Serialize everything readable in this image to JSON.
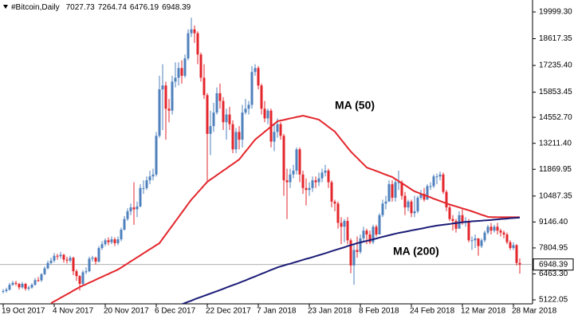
{
  "chart_data": {
    "type": "candlestick",
    "title": "#Bitcoin,Daily",
    "up_color": "#4f81bd",
    "down_color": "#e3262c",
    "price_line_color": "#b0b0b0",
    "categories": [
      "19 Oct 2017",
      null,
      null,
      null,
      null,
      null,
      null,
      null,
      null,
      null,
      null,
      null,
      null,
      null,
      null,
      null,
      "4 Nov 2017",
      null,
      null,
      null,
      null,
      null,
      null,
      null,
      null,
      null,
      null,
      null,
      null,
      null,
      null,
      null,
      "20 Nov 2017",
      null,
      null,
      null,
      null,
      null,
      null,
      null,
      null,
      null,
      null,
      null,
      null,
      null,
      null,
      null,
      "6 Dec 2017",
      null,
      null,
      null,
      null,
      null,
      null,
      null,
      null,
      null,
      null,
      null,
      null,
      null,
      null,
      null,
      "22 Dec 2017",
      null,
      null,
      null,
      null,
      null,
      null,
      null,
      null,
      null,
      null,
      null,
      null,
      null,
      null,
      null,
      "7 Jan 2018",
      null,
      null,
      null,
      null,
      null,
      null,
      null,
      null,
      null,
      null,
      null,
      null,
      null,
      null,
      null,
      "23 Jan 2018",
      null,
      null,
      null,
      null,
      null,
      null,
      null,
      null,
      null,
      null,
      null,
      null,
      null,
      null,
      null,
      "8 Feb 2018",
      null,
      null,
      null,
      null,
      null,
      null,
      null,
      null,
      null,
      null,
      null,
      null,
      null,
      null,
      null,
      "24 Feb 2018",
      null,
      null,
      null,
      null,
      null,
      null,
      null,
      null,
      null,
      null,
      null,
      null,
      null,
      null,
      null,
      "12 Mar 2018",
      null,
      null,
      null,
      null,
      null,
      null,
      null,
      null,
      null,
      null,
      null,
      null,
      null,
      null,
      null,
      "28 Mar 2018",
      null,
      null
    ],
    "open": [
      5550,
      5580,
      5650,
      5900,
      6000,
      5950,
      5770,
      5950,
      5700,
      5760,
      5900,
      6140,
      6130,
      6450,
      6750,
      7030,
      7150,
      7400,
      7380,
      7450,
      7200,
      7150,
      7300,
      6600,
      6350,
      5950,
      6550,
      6600,
      7250,
      7300,
      7100,
      7800,
      8000,
      8200,
      8100,
      8250,
      8050,
      8250,
      8750,
      9300,
      9700,
      9900,
      9800,
      9950,
      10900,
      10900,
      11300,
      11500,
      11600,
      13600,
      16000,
      16200,
      15000,
      14900,
      16400,
      16600,
      17100,
      16700,
      17600,
      18900,
      19100,
      18900,
      17800,
      16600,
      15700,
      13700,
      14100,
      14800,
      15800,
      15400,
      14300,
      14700,
      14200,
      12900,
      13800,
      13400,
      14800,
      15000,
      15200,
      16900,
      17100,
      16200,
      15000,
      14500,
      14900,
      13300,
      13800,
      14200,
      13600,
      11300,
      11200,
      11600,
      11800,
      12900,
      11600,
      10900,
      10800,
      10900,
      11300,
      11200,
      11400,
      11700,
      11800,
      11200,
      10200,
      10100,
      9100,
      8900,
      9200,
      8200,
      6900,
      7700,
      7600,
      8300,
      8700,
      8500,
      8100,
      8900,
      8500,
      9500,
      10100,
      10200,
      11100,
      10400,
      11200,
      11200,
      10500,
      9900,
      10200,
      9600,
      9700,
      10400,
      10600,
      10300,
      11000,
      11000,
      11500,
      11500,
      11600,
      10700,
      9900,
      9300,
      9200,
      8800,
      9500,
      9100,
      9200,
      8200,
      8200,
      8300,
      7900,
      8200,
      8600,
      8900,
      8700,
      8900,
      8700,
      8600,
      8500,
      8100,
      7800,
      7950,
      7027.73
    ],
    "high": [
      5680,
      5750,
      6000,
      6100,
      6100,
      6000,
      6050,
      6000,
      5850,
      5980,
      6250,
      6300,
      6500,
      6850,
      7150,
      7300,
      7550,
      7500,
      7600,
      7500,
      7350,
      7400,
      7350,
      6700,
      6400,
      6650,
      6800,
      7350,
      7400,
      7350,
      7900,
      8150,
      8300,
      8350,
      8400,
      8350,
      8400,
      8850,
      9450,
      9850,
      10100,
      11200,
      10200,
      11100,
      11300,
      11500,
      11800,
      11900,
      13800,
      16700,
      17300,
      16400,
      15500,
      16700,
      17400,
      17400,
      17500,
      17800,
      19100,
      19700,
      19300,
      19000,
      17900,
      17300,
      15800,
      14900,
      15300,
      16100,
      16300,
      15600,
      15000,
      15100,
      14400,
      14000,
      14100,
      15200,
      15500,
      15400,
      17200,
      17300,
      17200,
      16300,
      15400,
      15000,
      15000,
      14200,
      14500,
      14300,
      13700,
      11900,
      11900,
      12100,
      13000,
      13000,
      11800,
      11400,
      11200,
      11500,
      11500,
      11700,
      11900,
      12100,
      11900,
      11300,
      10300,
      10200,
      9400,
      9300,
      9400,
      8300,
      8000,
      8400,
      8500,
      8900,
      8800,
      8700,
      9000,
      9000,
      9600,
      10300,
      10500,
      11300,
      11300,
      11300,
      11800,
      11300,
      10700,
      10300,
      10300,
      10500,
      10500,
      10800,
      10900,
      11100,
      11200,
      11600,
      11650,
      11750,
      11700,
      10800,
      10000,
      9500,
      9300,
      9700,
      9800,
      9400,
      9300,
      8400,
      8500,
      8300,
      8300,
      8700,
      9000,
      9100,
      9000,
      9100,
      8800,
      8700,
      8600,
      8200,
      8100,
      8000,
      7264.74
    ],
    "low": [
      5450,
      5500,
      5600,
      5850,
      5850,
      5650,
      5700,
      5600,
      5600,
      5700,
      5850,
      6050,
      6050,
      6400,
      6700,
      6950,
      7050,
      7200,
      7250,
      7050,
      7000,
      7050,
      6400,
      6100,
      5600,
      5850,
      6450,
      6550,
      7100,
      6950,
      7050,
      7700,
      7900,
      7950,
      8000,
      7900,
      7950,
      8150,
      8700,
      9200,
      9500,
      9000,
      9400,
      9900,
      10600,
      10800,
      11100,
      11300,
      11500,
      13500,
      13900,
      13400,
      14300,
      14700,
      16100,
      16200,
      16300,
      16600,
      17500,
      18700,
      18400,
      17300,
      16400,
      15500,
      11200,
      12600,
      13800,
      14700,
      15000,
      13900,
      13400,
      13900,
      12700,
      12700,
      12900,
      13000,
      14700,
      14700,
      15000,
      16700,
      16000,
      14700,
      14300,
      14200,
      13000,
      12800,
      13500,
      13400,
      10500,
      9300,
      10900,
      11400,
      11600,
      11200,
      10600,
      10000,
      10500,
      10700,
      10900,
      11000,
      11200,
      11500,
      10900,
      9900,
      9700,
      8800,
      8000,
      8100,
      8000,
      6500,
      5900,
      7300,
      7500,
      8100,
      8000,
      8000,
      8000,
      8400,
      8500,
      9400,
      9800,
      10200,
      10200,
      10200,
      10800,
      10300,
      9500,
      9700,
      9400,
      9400,
      9600,
      10300,
      10200,
      10300,
      10800,
      10900,
      11100,
      11300,
      10600,
      9700,
      9200,
      8700,
      8600,
      8800,
      9000,
      8900,
      8100,
      7700,
      7800,
      7400,
      7800,
      8100,
      8500,
      8500,
      8600,
      8500,
      8400,
      8300,
      8000,
      7700,
      7700,
      6900,
      6476.19
    ],
    "close": [
      5580,
      5650,
      5900,
      6000,
      5950,
      5770,
      5950,
      5700,
      5760,
      5900,
      6140,
      6130,
      6450,
      6750,
      7030,
      7150,
      7400,
      7380,
      7450,
      7200,
      7150,
      7300,
      6600,
      6350,
      5950,
      6550,
      6600,
      7250,
      7300,
      7100,
      7800,
      8000,
      8200,
      8100,
      8250,
      8050,
      8250,
      8750,
      9300,
      9700,
      9900,
      9800,
      9950,
      10900,
      10900,
      11300,
      11500,
      11600,
      13600,
      16000,
      16200,
      15000,
      14900,
      16400,
      16600,
      17100,
      16700,
      17600,
      18900,
      19100,
      18900,
      17800,
      16600,
      15700,
      13700,
      14100,
      14800,
      15800,
      15400,
      14300,
      14700,
      14200,
      12900,
      13800,
      13400,
      14800,
      15000,
      15200,
      16900,
      17100,
      16200,
      15000,
      14500,
      14900,
      13300,
      13800,
      14200,
      13600,
      11300,
      11200,
      11600,
      11800,
      12900,
      11600,
      10900,
      10800,
      10900,
      11300,
      11200,
      11400,
      11700,
      11800,
      11200,
      10200,
      10100,
      9100,
      8900,
      9200,
      8200,
      6900,
      7700,
      7600,
      8300,
      8700,
      8500,
      8100,
      8900,
      8500,
      9500,
      10100,
      10200,
      11100,
      10400,
      11200,
      11200,
      10500,
      9900,
      10200,
      9600,
      9700,
      10400,
      10600,
      10300,
      11000,
      11000,
      11500,
      11500,
      11600,
      10700,
      9900,
      9300,
      9200,
      8800,
      9500,
      9100,
      9200,
      8200,
      8200,
      8300,
      7900,
      8200,
      8600,
      8900,
      8700,
      8900,
      8700,
      8600,
      8500,
      8100,
      7800,
      7950,
      7028,
      6948.39
    ],
    "series": [
      {
        "name": "MA (50)",
        "color": "#e3262c",
        "values": [
          null,
          null,
          null,
          null,
          null,
          null,
          null,
          null,
          null,
          null,
          null,
          null,
          null,
          null,
          null,
          4950,
          5040,
          5130,
          5230,
          5320,
          5410,
          5500,
          5600,
          5690,
          5780,
          5860,
          5930,
          6010,
          6080,
          6160,
          6240,
          6310,
          6390,
          6460,
          6540,
          6610,
          6690,
          6790,
          6900,
          7000,
          7110,
          7210,
          7320,
          7420,
          7530,
          7630,
          7740,
          7840,
          7950,
          8050,
          8280,
          8500,
          8730,
          8950,
          9180,
          9400,
          9630,
          9850,
          10080,
          10300,
          10480,
          10670,
          10850,
          11040,
          11220,
          11340,
          11450,
          11570,
          11680,
          11800,
          11910,
          12030,
          12140,
          12260,
          12375,
          12580,
          12790,
          12990,
          13200,
          13400,
          13540,
          13670,
          13810,
          13940,
          14080,
          14210,
          14350,
          14390,
          14420,
          14460,
          14500,
          14530,
          14570,
          14600,
          14640,
          14600,
          14560,
          14520,
          14480,
          14435,
          14310,
          14190,
          14060,
          13940,
          13817,
          13610,
          13400,
          13200,
          12990,
          12787,
          12620,
          12460,
          12290,
          12130,
          11962,
          11900,
          11840,
          11780,
          11720,
          11650,
          11590,
          11530,
          11470,
          11360,
          11260,
          11150,
          11050,
          10940,
          10830,
          10727,
          10670,
          10600,
          10540,
          10480,
          10420,
          10350,
          10290,
          10230,
          10170,
          10108,
          10050,
          10000,
          9950,
          9900,
          9850,
          9800,
          9750,
          9696,
          9640,
          9580,
          9520,
          9470,
          9408,
          9400,
          9400,
          9390,
          9390,
          9390,
          9390,
          9390,
          9390,
          9390,
          9390
        ]
      },
      {
        "name": "MA (200)",
        "color": "#1c1c78",
        "values": [
          null,
          null,
          null,
          null,
          null,
          null,
          null,
          null,
          null,
          null,
          null,
          null,
          null,
          null,
          null,
          null,
          null,
          null,
          null,
          null,
          null,
          null,
          null,
          null,
          null,
          null,
          null,
          null,
          null,
          null,
          null,
          null,
          null,
          null,
          null,
          null,
          null,
          null,
          null,
          null,
          null,
          null,
          null,
          null,
          null,
          null,
          null,
          null,
          null,
          null,
          null,
          null,
          null,
          null,
          null,
          null,
          4900,
          4960,
          5020,
          5080,
          5150,
          5210,
          5270,
          5330,
          5390,
          5450,
          5510,
          5570,
          5630,
          5690,
          5760,
          5820,
          5880,
          5940,
          6000,
          6070,
          6130,
          6200,
          6270,
          6330,
          6400,
          6470,
          6530,
          6600,
          6670,
          6730,
          6800,
          6850,
          6900,
          6950,
          6990,
          7040,
          7090,
          7140,
          7190,
          7240,
          7280,
          7330,
          7380,
          7430,
          7480,
          7530,
          7580,
          7640,
          7690,
          7740,
          7790,
          7840,
          7900,
          7950,
          8000,
          8050,
          8090,
          8130,
          8170,
          8210,
          8250,
          8290,
          8340,
          8380,
          8420,
          8460,
          8500,
          8540,
          8580,
          8610,
          8640,
          8670,
          8710,
          8740,
          8770,
          8800,
          8830,
          8870,
          8900,
          8930,
          8960,
          8980,
          9000,
          9020,
          9040,
          9070,
          9090,
          9110,
          9130,
          9150,
          9160,
          9180,
          9190,
          9200,
          9210,
          9230,
          9240,
          9250,
          9270,
          9280,
          9300,
          9310,
          9320,
          9340,
          9350,
          9360,
          9370
        ]
      }
    ],
    "ylim": [
      4916,
      20617
    ],
    "yticks": [
      {
        "value": 19999.3,
        "label": "19999.30"
      },
      {
        "value": 18617.35,
        "label": "18617.35"
      },
      {
        "value": 17235.4,
        "label": "17235.40"
      },
      {
        "value": 15853.45,
        "label": "15853.45"
      },
      {
        "value": 14552.7,
        "label": "14552.70"
      },
      {
        "value": 13211.4,
        "label": "13211.40"
      },
      {
        "value": 11869.95,
        "label": "11869.95"
      },
      {
        "value": 10487.35,
        "label": "10487.35"
      },
      {
        "value": 9146.4,
        "label": "9146.40"
      },
      {
        "value": 7804.95,
        "label": "7804.95"
      },
      {
        "value": 6463.3,
        "label": "6463.30"
      },
      {
        "value": 5122.05,
        "label": "5122.05"
      }
    ]
  }
}
